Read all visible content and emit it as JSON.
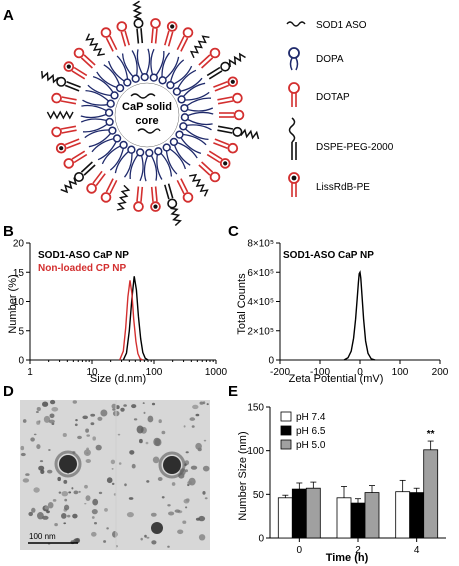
{
  "panels": {
    "A": {
      "letter": "A",
      "core_label_1": "CaP solid",
      "core_label_2": "core",
      "legend": [
        "SOD1 ASO",
        "DOPA",
        "DOTAP",
        "DSPE-PEG-2000",
        "LissRdB-PE"
      ],
      "colors": {
        "dopa": "#1f2a6b",
        "dotap": "#d32f2f",
        "peg": "#111111",
        "liss": "#d32f2f",
        "liss_dot": "#111111"
      }
    },
    "B": {
      "letter": "B"
    },
    "C": {
      "letter": "C"
    },
    "D": {
      "letter": "D",
      "scale_bar": "100 nm"
    },
    "E": {
      "letter": "E"
    }
  },
  "chart_data": [
    {
      "id": "B",
      "type": "line",
      "xscale": "log",
      "xlabel": "Size (d.nm)",
      "ylabel": "Number (%)",
      "xlim": [
        1,
        1000
      ],
      "ylim": [
        0,
        20
      ],
      "xticks": [
        "1",
        "10",
        "100",
        "1000"
      ],
      "yticks": [
        "0",
        "5",
        "10",
        "15",
        "20"
      ],
      "series": [
        {
          "name": "SOD1-ASO CaP NP",
          "color": "#000000",
          "x": [
            32,
            36,
            40,
            44,
            48,
            52,
            56,
            61,
            66,
            72,
            80
          ],
          "y": [
            0,
            1.2,
            5.0,
            10.5,
            14.3,
            12.0,
            7.5,
            3.6,
            1.3,
            0.3,
            0
          ]
        },
        {
          "name": "Non-loaded CP NP",
          "color": "#d32f2f",
          "x": [
            28,
            32,
            35,
            38,
            41,
            44,
            47,
            51,
            55,
            60,
            66
          ],
          "y": [
            0,
            1.5,
            5.5,
            10.8,
            13.6,
            11.4,
            7.0,
            3.2,
            1.1,
            0.2,
            0
          ]
        }
      ]
    },
    {
      "id": "C",
      "type": "line",
      "xlabel": "Zeta Potential (mV)",
      "ylabel": "Total Counts",
      "title": "SOD1-ASO CaP NP",
      "xlim": [
        -200,
        200
      ],
      "ylim": [
        0,
        800000
      ],
      "xticks": [
        "-200",
        "-100",
        "0",
        "100",
        "200"
      ],
      "yticks": [
        "0",
        "2×10⁵",
        "4×10⁵",
        "6×10⁵",
        "8×10⁵"
      ],
      "series": [
        {
          "name": "SOD1-ASO CaP NP",
          "color": "#000000",
          "x": [
            -40,
            -30,
            -22,
            -16,
            -11,
            -7,
            -4,
            -2,
            0,
            2,
            5,
            9,
            14,
            20,
            28,
            38
          ],
          "y": [
            0,
            15000,
            60000,
            150000,
            280000,
            420000,
            530000,
            590000,
            600000,
            560000,
            440000,
            280000,
            130000,
            45000,
            8000,
            0
          ]
        }
      ]
    },
    {
      "id": "E",
      "type": "bar",
      "xlabel": "Time (h)",
      "ylabel": "Number Size (nm)",
      "ylim": [
        0,
        150
      ],
      "yticks": [
        "0",
        "50",
        "100",
        "150"
      ],
      "categories": [
        "0",
        "2",
        "4"
      ],
      "series": [
        {
          "name": "pH 7.4",
          "color": "#ffffff",
          "values": [
            46,
            46,
            53
          ],
          "errors": [
            3,
            13,
            13
          ]
        },
        {
          "name": "pH 6.5",
          "color": "#000000",
          "values": [
            56,
            40,
            52
          ],
          "errors": [
            7,
            5,
            5
          ]
        },
        {
          "name": "pH 5.0",
          "color": "#a0a0a0",
          "values": [
            57,
            52,
            101
          ],
          "errors": [
            7,
            8,
            10
          ]
        }
      ],
      "annotations": [
        {
          "category": "4",
          "series": "pH 5.0",
          "text": "**"
        }
      ]
    }
  ]
}
